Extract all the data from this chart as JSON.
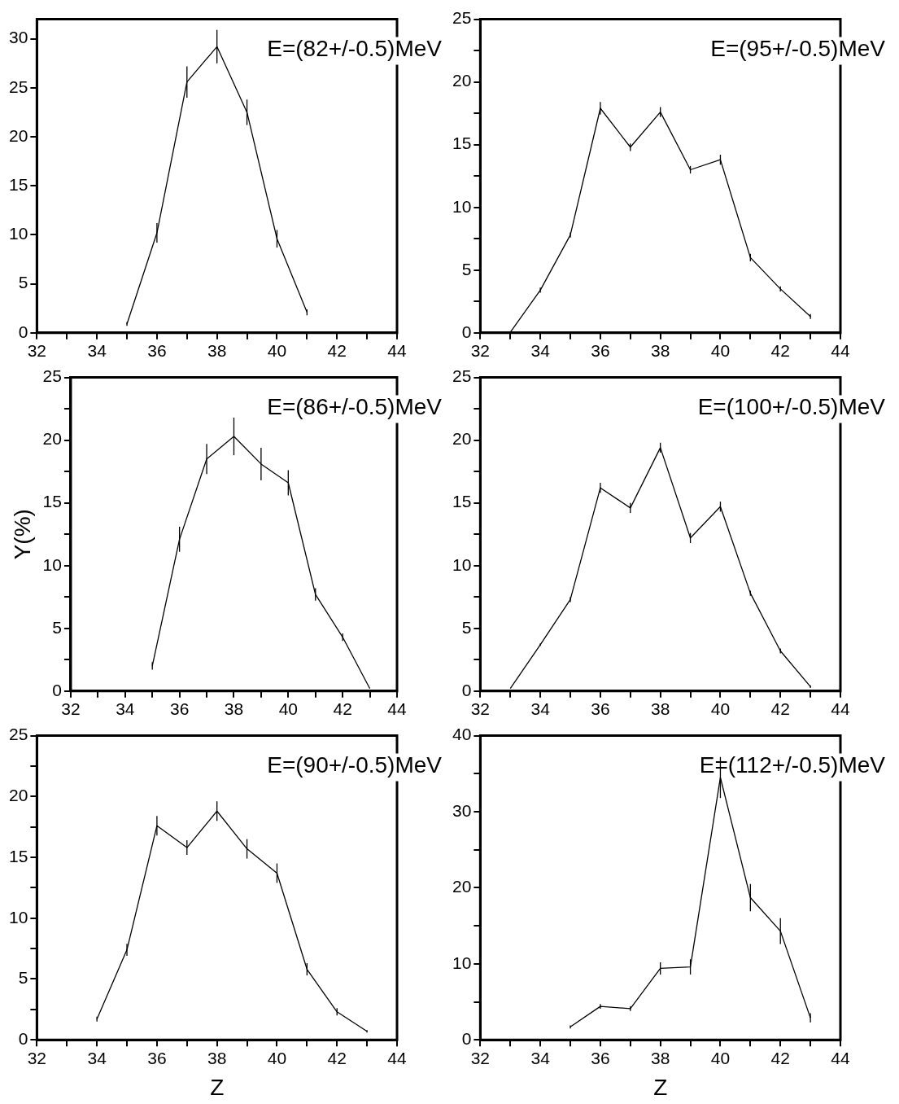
{
  "chart_data": [
    {
      "type": "line",
      "title": "E=(82+/-0.5)MeV",
      "xlim": [
        32,
        44
      ],
      "xticks": [
        32,
        {
          "value": 33,
          "label": null
        },
        34,
        {
          "value": 35,
          "label": null
        },
        36,
        {
          "value": 37,
          "label": null
        },
        38,
        {
          "value": 39,
          "label": null
        },
        40,
        {
          "value": 41,
          "label": null
        },
        42,
        {
          "value": 43,
          "label": null
        },
        44
      ],
      "ylim": [
        0,
        32
      ],
      "yticks": [
        0,
        5,
        10,
        15,
        20,
        25,
        30
      ],
      "marker": "none",
      "x": [
        35,
        36,
        37,
        38,
        39,
        40,
        41
      ],
      "series": [
        {
          "color": "#000000",
          "values": [
            0.9,
            10.2,
            25.6,
            29.2,
            22.5,
            9.6,
            2.1
          ],
          "errors": [
            0.2,
            1.0,
            1.6,
            1.7,
            1.3,
            0.9,
            0.3
          ]
        }
      ]
    },
    {
      "type": "line",
      "title": "E=(95+/-0.5)MeV",
      "xlim": [
        32,
        44
      ],
      "xticks": [
        32,
        {
          "value": 33,
          "label": null
        },
        34,
        {
          "value": 35,
          "label": null
        },
        36,
        {
          "value": 37,
          "label": null
        },
        38,
        {
          "value": 39,
          "label": null
        },
        40,
        {
          "value": 41,
          "label": null
        },
        42,
        {
          "value": 43,
          "label": null
        },
        44
      ],
      "ylim": [
        0,
        25
      ],
      "yticks": [
        0,
        {
          "value": 2.5,
          "label": null
        },
        5,
        {
          "value": 7.5,
          "label": null
        },
        10,
        {
          "value": 12.5,
          "label": null
        },
        15,
        {
          "value": 17.5,
          "label": null
        },
        20,
        {
          "value": 22.5,
          "label": null
        },
        25
      ],
      "marker": "none",
      "x": [
        33,
        34,
        35,
        36,
        37,
        38,
        39,
        40,
        41,
        42,
        43
      ],
      "series": [
        {
          "color": "#000000",
          "values": [
            0.05,
            3.4,
            7.8,
            17.9,
            14.8,
            17.6,
            13.0,
            13.8,
            6.0,
            3.5,
            1.3
          ],
          "errors": [
            null,
            0.2,
            0.2,
            0.5,
            0.3,
            0.4,
            0.3,
            0.4,
            0.3,
            0.2,
            0.2
          ]
        }
      ]
    },
    {
      "type": "line",
      "title": "E=(86+/-0.5)MeV",
      "ylabel": "Y(%)",
      "xlim": [
        32,
        44
      ],
      "xticks": [
        32,
        {
          "value": 33,
          "label": null
        },
        34,
        {
          "value": 35,
          "label": null
        },
        36,
        {
          "value": 37,
          "label": null
        },
        38,
        {
          "value": 39,
          "label": null
        },
        40,
        {
          "value": 41,
          "label": null
        },
        42,
        {
          "value": 43,
          "label": null
        },
        44
      ],
      "ylim": [
        0,
        25
      ],
      "yticks": [
        0,
        {
          "value": 2.5,
          "label": null
        },
        5,
        {
          "value": 7.5,
          "label": null
        },
        10,
        {
          "value": 12.5,
          "label": null
        },
        15,
        {
          "value": 17.5,
          "label": null
        },
        20,
        {
          "value": 22.5,
          "label": null
        },
        25
      ],
      "marker": "none",
      "x": [
        35,
        36,
        37,
        38,
        39,
        40,
        41,
        42,
        43
      ],
      "series": [
        {
          "color": "#000000",
          "values": [
            2.0,
            12.1,
            18.5,
            20.3,
            18.1,
            16.6,
            7.7,
            4.3,
            0.2
          ],
          "errors": [
            0.3,
            1.0,
            1.2,
            1.5,
            1.3,
            1.0,
            0.5,
            0.3,
            null
          ]
        }
      ]
    },
    {
      "type": "line",
      "title": "E=(100+/-0.5)MeV",
      "xlim": [
        32,
        44
      ],
      "xticks": [
        32,
        {
          "value": 33,
          "label": null
        },
        34,
        {
          "value": 35,
          "label": null
        },
        36,
        {
          "value": 37,
          "label": null
        },
        38,
        {
          "value": 39,
          "label": null
        },
        40,
        {
          "value": 41,
          "label": null
        },
        42,
        {
          "value": 43,
          "label": null
        },
        44
      ],
      "ylim": [
        0,
        25
      ],
      "yticks": [
        0,
        {
          "value": 2.5,
          "label": null
        },
        5,
        {
          "value": 7.5,
          "label": null
        },
        10,
        {
          "value": 12.5,
          "label": null
        },
        15,
        {
          "value": 17.5,
          "label": null
        },
        20,
        {
          "value": 22.5,
          "label": null
        },
        25
      ],
      "marker": "none",
      "x": [
        33,
        34,
        35,
        36,
        37,
        38,
        39,
        40,
        41,
        42,
        43
      ],
      "series": [
        {
          "color": "#000000",
          "values": [
            0.2,
            3.7,
            7.3,
            16.2,
            14.6,
            19.4,
            12.2,
            14.7,
            7.8,
            3.2,
            0.35
          ],
          "errors": [
            null,
            0.1,
            0.2,
            0.4,
            0.4,
            0.4,
            0.4,
            0.4,
            0.2,
            0.2,
            0.1
          ]
        }
      ]
    },
    {
      "type": "line",
      "title": "E=(90+/-0.5)MeV",
      "xlabel": "Z",
      "xlim": [
        32,
        44
      ],
      "xticks": [
        32,
        {
          "value": 33,
          "label": null
        },
        34,
        {
          "value": 35,
          "label": null
        },
        36,
        {
          "value": 37,
          "label": null
        },
        38,
        {
          "value": 39,
          "label": null
        },
        40,
        {
          "value": 41,
          "label": null
        },
        42,
        {
          "value": 43,
          "label": null
        },
        44
      ],
      "ylim": [
        0,
        25
      ],
      "yticks": [
        0,
        {
          "value": 2.5,
          "label": null
        },
        5,
        {
          "value": 7.5,
          "label": null
        },
        10,
        {
          "value": 12.5,
          "label": null
        },
        15,
        {
          "value": 17.5,
          "label": null
        },
        20,
        {
          "value": 22.5,
          "label": null
        },
        25
      ],
      "marker": "none",
      "x": [
        34,
        35,
        36,
        37,
        38,
        39,
        40,
        41,
        42,
        43
      ],
      "series": [
        {
          "color": "#000000",
          "values": [
            1.7,
            7.4,
            17.6,
            15.8,
            18.8,
            15.7,
            13.7,
            5.8,
            2.3,
            0.7
          ],
          "errors": [
            0.2,
            0.5,
            0.8,
            0.6,
            0.8,
            0.8,
            0.8,
            0.5,
            0.3,
            0.1
          ]
        }
      ]
    },
    {
      "type": "line",
      "title": "E=(112+/-0.5)MeV",
      "xlabel": "Z",
      "xlim": [
        32,
        44
      ],
      "xticks": [
        32,
        {
          "value": 33,
          "label": null
        },
        34,
        {
          "value": 35,
          "label": null
        },
        36,
        {
          "value": 37,
          "label": null
        },
        38,
        {
          "value": 39,
          "label": null
        },
        40,
        {
          "value": 41,
          "label": null
        },
        42,
        {
          "value": 43,
          "label": null
        },
        44
      ],
      "ylim": [
        0,
        40
      ],
      "yticks": [
        0,
        {
          "value": 5,
          "label": null
        },
        10,
        {
          "value": 15,
          "label": null
        },
        20,
        {
          "value": 25,
          "label": null
        },
        30,
        {
          "value": 35,
          "label": null
        },
        40
      ],
      "marker": "none",
      "x": [
        35,
        36,
        37,
        38,
        39,
        40,
        41,
        42,
        43
      ],
      "series": [
        {
          "color": "#000000",
          "values": [
            1.7,
            4.4,
            4.1,
            9.4,
            9.6,
            34.5,
            18.7,
            14.3,
            2.9
          ],
          "errors": [
            0.2,
            0.3,
            0.3,
            0.8,
            1.0,
            2.7,
            1.8,
            1.7,
            0.6
          ]
        }
      ]
    }
  ]
}
